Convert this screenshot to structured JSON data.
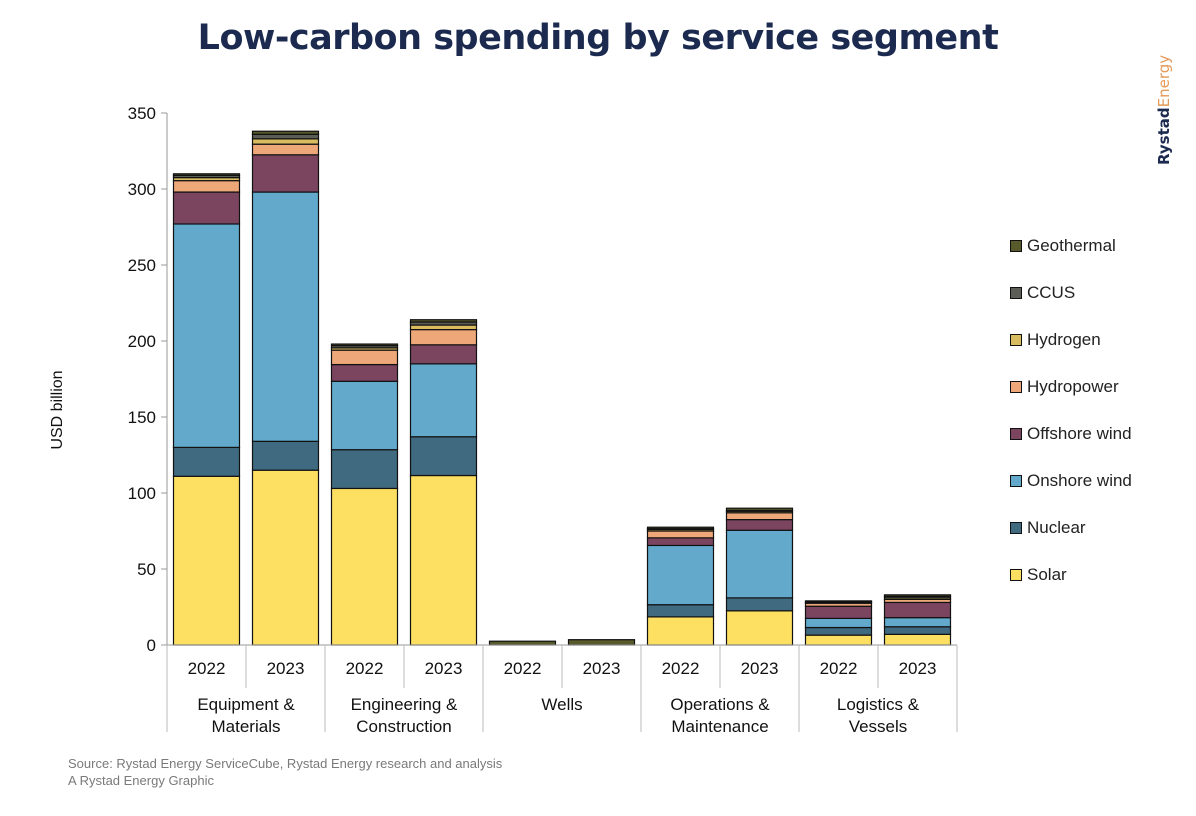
{
  "title": "Low-carbon spending by service segment",
  "brand": {
    "part1": "Rystad",
    "part2": "Energy"
  },
  "footer": {
    "source": "Source: Rystad Energy ServiceCube, Rystad Energy research and analysis",
    "credit": "A Rystad Energy Graphic"
  },
  "chart_data": {
    "type": "bar",
    "stacked": true,
    "ylabel": "USD billion",
    "ylim": [
      0,
      350
    ],
    "yticks": [
      0,
      50,
      100,
      150,
      200,
      250,
      300,
      350
    ],
    "grid": false,
    "legend_position": "right",
    "groups": [
      {
        "label": "Equipment & Materials",
        "lines": [
          "Equipment &",
          "Materials"
        ]
      },
      {
        "label": "Engineering & Construction",
        "lines": [
          "Engineering &",
          "Construction"
        ]
      },
      {
        "label": "Wells",
        "lines": [
          "Wells"
        ]
      },
      {
        "label": "Operations & Maintenance",
        "lines": [
          "Operations &",
          "Maintenance"
        ]
      },
      {
        "label": "Logistics & Vessels",
        "lines": [
          "Logistics &",
          "Vessels"
        ]
      }
    ],
    "years": [
      "2022",
      "2023"
    ],
    "categories": [
      "2022",
      "2023",
      "2022",
      "2023",
      "2022",
      "2023",
      "2022",
      "2023",
      "2022",
      "2023"
    ],
    "series": [
      {
        "name": "Solar",
        "color": "#fde062",
        "values": [
          111,
          115,
          103,
          111.5,
          0,
          0,
          18.5,
          22.5,
          6.5,
          7
        ]
      },
      {
        "name": "Nuclear",
        "color": "#3f6a80",
        "values": [
          19,
          19,
          25.5,
          25.5,
          0,
          0,
          8,
          8.5,
          5,
          5
        ]
      },
      {
        "name": "Onshore wind",
        "color": "#62a9cc",
        "values": [
          147,
          164,
          45,
          48,
          0,
          0,
          39,
          44.5,
          6,
          6
        ]
      },
      {
        "name": "Offshore wind",
        "color": "#7b4560",
        "values": [
          21,
          24.5,
          11,
          12.5,
          0,
          0,
          5,
          7,
          8,
          10
        ]
      },
      {
        "name": "Hydropower",
        "color": "#eea779",
        "values": [
          7.5,
          7,
          9.5,
          10,
          0,
          0,
          4.5,
          4.5,
          2,
          2
        ]
      },
      {
        "name": "Hydrogen",
        "color": "#d9bb60",
        "values": [
          2,
          3.5,
          1.5,
          3,
          0,
          0,
          1,
          1,
          0.5,
          1
        ]
      },
      {
        "name": "CCUS",
        "color": "#5d5d57",
        "values": [
          1.5,
          3,
          1.5,
          2,
          0,
          0,
          0.5,
          0.5,
          0.5,
          1
        ]
      },
      {
        "name": "Geothermal",
        "color": "#585a2c",
        "values": [
          1,
          2,
          1,
          1.5,
          2.5,
          3.5,
          1,
          1.5,
          0.5,
          1
        ]
      }
    ],
    "legend_order": [
      "Geothermal",
      "CCUS",
      "Hydrogen",
      "Hydropower",
      "Offshore wind",
      "Onshore wind",
      "Nuclear",
      "Solar"
    ]
  }
}
